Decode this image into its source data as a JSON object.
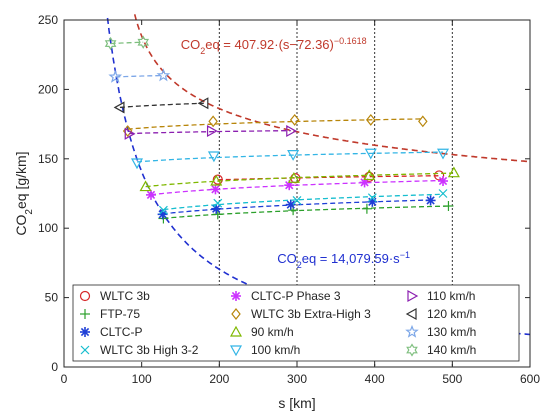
{
  "chart_data": {
    "type": "scatter",
    "xlabel": "s [km]",
    "ylabel": "CO₂eq [g/km]",
    "xlim": [
      0,
      600
    ],
    "ylim": [
      0,
      250
    ],
    "xticks": [
      "0",
      "100",
      "200",
      "300",
      "400",
      "500",
      "600"
    ],
    "yticks": [
      "0",
      "50",
      "100",
      "150",
      "200",
      "250"
    ],
    "grid": false,
    "legend_position": "bottom",
    "vertical_reference_lines_x": [
      200,
      300,
      400,
      500
    ],
    "annotations": [
      {
        "id": "power_fit",
        "text_base": "CO",
        "text_sub": "2",
        "text_main": "eq = 407.92·(s−72.36)",
        "text_sup": "−0.1618",
        "color": "#c0392b",
        "x": 270,
        "y": 229
      },
      {
        "id": "hyperbola_fit",
        "text_base": "CO",
        "text_sub": "2",
        "text_main": "eq = 14,079.59·s",
        "text_sup": "−1",
        "color": "#2030d0",
        "x": 360,
        "y": 75
      }
    ],
    "curves": [
      {
        "id": "power_fit",
        "formula": "407.92*(s-72.36)^-0.1618",
        "x_from": 74,
        "x_to": 600,
        "color": "#c0392b"
      },
      {
        "id": "hyperbola_fit",
        "formula": "14079.59/s",
        "x_from": 56,
        "x_to": 600,
        "color": "#2030d0"
      }
    ],
    "series": [
      {
        "name": "WLTC 3b",
        "marker": "circle",
        "color": "#d62728",
        "x": [
          198,
          298,
          393,
          483
        ],
        "y": [
          135,
          136,
          137,
          138
        ]
      },
      {
        "name": "FTP-75",
        "marker": "plus",
        "color": "#2ca02c",
        "x": [
          128,
          198,
          295,
          390,
          495
        ],
        "y": [
          107,
          110,
          113,
          114,
          116
        ]
      },
      {
        "name": "CLTC-P",
        "marker": "asterisk",
        "color": "#1f3fd6",
        "x": [
          127,
          196,
          292,
          397,
          472
        ],
        "y": [
          110,
          114,
          117,
          119,
          120
        ]
      },
      {
        "name": "WLTC 3b High 3-2",
        "marker": "x",
        "color": "#17becf",
        "x": [
          128,
          198,
          300,
          397,
          488
        ],
        "y": [
          113,
          118,
          120,
          122,
          125
        ]
      },
      {
        "name": "CLTC-P Phase 3",
        "marker": "asterisk",
        "color": "#cc33ff",
        "x": [
          112,
          195,
          290,
          387,
          488
        ],
        "y": [
          124,
          128,
          131,
          133,
          134
        ]
      },
      {
        "name": "WLTC 3b Extra-High 3",
        "marker": "diamond",
        "color": "#b8860b",
        "x": [
          82,
          192,
          297,
          395,
          462
        ],
        "y": [
          170,
          177,
          178,
          178,
          177
        ]
      },
      {
        "name": "90 km/h",
        "marker": "triangle-up",
        "color": "#7fb800",
        "x": [
          105,
          196,
          296,
          393,
          502
        ],
        "y": [
          130,
          134,
          136,
          138,
          140
        ]
      },
      {
        "name": "100 km/h",
        "marker": "triangle-down",
        "color": "#33b5e5",
        "x": [
          94,
          193,
          295,
          395,
          488
        ],
        "y": [
          147,
          152,
          153,
          154,
          154
        ]
      },
      {
        "name": "110 km/h",
        "marker": "triangle-right",
        "color": "#8b1fb0",
        "x": [
          84,
          190,
          292
        ],
        "y": [
          168,
          170,
          170
        ]
      },
      {
        "name": "120 km/h",
        "marker": "triangle-left",
        "color": "#333333",
        "x": [
          72,
          180
        ],
        "y": [
          187,
          190
        ]
      },
      {
        "name": "130 km/h",
        "marker": "pentagram",
        "color": "#7da7e8",
        "x": [
          66,
          128
        ],
        "y": [
          209,
          210
        ]
      },
      {
        "name": "140 km/h",
        "marker": "hexagram",
        "color": "#7fbf7f",
        "x": [
          60,
          102
        ],
        "y": [
          233,
          234
        ]
      }
    ]
  }
}
